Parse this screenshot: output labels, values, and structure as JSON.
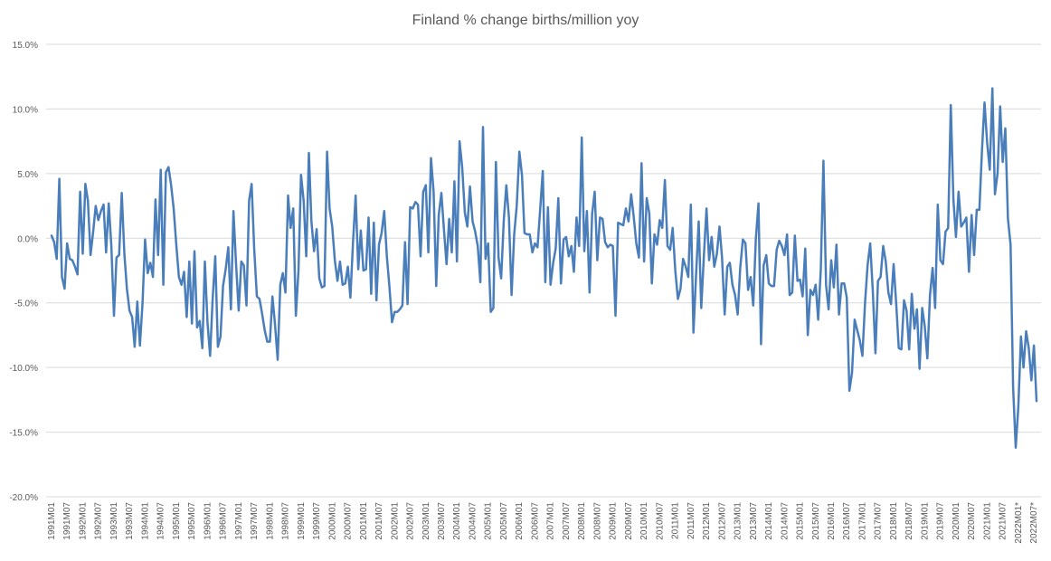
{
  "chart_data": {
    "type": "line",
    "title": "Finland % change births/million yoy",
    "xlabel": "",
    "ylabel": "",
    "ylim": [
      -20,
      15
    ],
    "yticks": [
      15,
      10,
      5,
      0,
      -5,
      -10,
      -15,
      -20
    ],
    "ytick_labels": [
      "15.0%",
      "10.0%",
      "5.0%",
      "0.0%",
      "-5.0%",
      "-10.0%",
      "-15.0%",
      "-20.0%"
    ],
    "xtick_labels": [
      "1991M01",
      "1991M07",
      "1992M01",
      "1992M07",
      "1993M01",
      "1993M07",
      "1994M01",
      "1994M07",
      "1995M01",
      "1995M07",
      "1996M01",
      "1996M07",
      "1997M01",
      "1997M07",
      "1998M01",
      "1998M07",
      "1999M01",
      "1999M07",
      "2000M01",
      "2000M07",
      "2001M01",
      "2001M07",
      "2002M01",
      "2002M07",
      "2003M01",
      "2003M07",
      "2004M01",
      "2004M07",
      "2005M01",
      "2005M07",
      "2006M01",
      "2006M07",
      "2007M01",
      "2007M07",
      "2008M01",
      "2008M07",
      "2009M01",
      "2009M07",
      "2010M01",
      "2010M07",
      "2011M01",
      "2011M07",
      "2012M01",
      "2012M07",
      "2013M01",
      "2013M07",
      "2014M01",
      "2014M07",
      "2015M01",
      "2015M07",
      "2016M01",
      "2016M07",
      "2017M01",
      "2017M07",
      "2018M01",
      "2018M07",
      "2019M01",
      "2019M07",
      "2020M01",
      "2020M07",
      "2021M01",
      "2021M07",
      "2022M01*",
      "2022M07*"
    ],
    "series": [
      {
        "name": "Finland % change births/million yoy",
        "color": "#4a7ebb",
        "values": [
          0.2,
          -0.3,
          -1.6,
          4.6,
          -3.0,
          -3.9,
          -0.4,
          -1.6,
          -1.7,
          -2.2,
          -2.8,
          3.6,
          -1.2,
          4.2,
          2.9,
          -1.3,
          0.5,
          2.5,
          1.4,
          2.1,
          2.6,
          -1.1,
          2.7,
          -0.6,
          -6.0,
          -1.5,
          -1.3,
          3.5,
          -1.2,
          -3.9,
          -5.6,
          -6.1,
          -8.4,
          -4.9,
          -8.3,
          -5.0,
          -0.1,
          -2.7,
          -1.9,
          -3.0,
          3.0,
          -1.3,
          5.3,
          -3.6,
          5.1,
          5.5,
          4.1,
          2.3,
          -0.5,
          -3.0,
          -3.6,
          -2.6,
          -6.1,
          -1.8,
          -6.6,
          -1.0,
          -6.9,
          -6.4,
          -8.5,
          -1.8,
          -6.5,
          -9.1,
          -4.7,
          -1.4,
          -8.4,
          -7.6,
          -3.7,
          -2.4,
          -0.7,
          -5.5,
          2.1,
          -2.0,
          -5.6,
          -1.8,
          -2.1,
          -5.2,
          2.9,
          4.2,
          -0.9,
          -4.5,
          -4.7,
          -5.8,
          -7.1,
          -8.0,
          -8.0,
          -4.5,
          -6.7,
          -9.4,
          -3.6,
          -2.7,
          -4.2,
          3.3,
          0.8,
          2.3,
          -6.0,
          -2.5,
          4.9,
          2.9,
          -1.4,
          6.6,
          1.3,
          -1.0,
          0.7,
          -3.1,
          -3.8,
          -3.7,
          6.7,
          2.3,
          0.9,
          -1.7,
          -3.3,
          -1.8,
          -3.6,
          -3.5,
          -2.2,
          -4.6,
          -0.3,
          3.3,
          -2.4,
          0.6,
          -2.5,
          -2.4,
          1.6,
          -4.3,
          1.2,
          -4.8,
          -0.5,
          0.4,
          2.1,
          -1.4,
          -3.7,
          -6.5,
          -5.7,
          -5.7,
          -5.5,
          -5.2,
          -0.3,
          -5.1,
          2.4,
          2.3,
          2.8,
          2.6,
          -1.4,
          3.6,
          4.1,
          -1.1,
          6.2,
          3.6,
          -3.7,
          1.8,
          3.5,
          0.6,
          -2.0,
          1.5,
          -1.1,
          4.4,
          -1.8,
          7.5,
          5.5,
          2.0,
          0.9,
          4.0,
          1.3,
          0.5,
          -0.6,
          -3.4,
          8.6,
          -1.6,
          -0.4,
          -5.7,
          -5.4,
          5.9,
          -1.5,
          -3.1,
          1.4,
          4.1,
          1.6,
          -4.4,
          0.3,
          2.5,
          6.7,
          4.9,
          0.4,
          0.3,
          0.3,
          -1.1,
          -0.4,
          -0.7,
          2.2,
          5.2,
          -3.4,
          2.4,
          -3.6,
          -1.9,
          -0.8,
          3.1,
          -3.5,
          -0.1,
          0.1,
          -1.4,
          -0.6,
          -2.6,
          1.6,
          -0.6,
          7.8,
          -1.0,
          2.1,
          -4.2,
          1.9,
          3.6,
          -1.7,
          1.6,
          1.5,
          -0.3,
          -0.7,
          -0.5,
          -0.6,
          -6.0,
          1.2,
          1.1,
          1.0,
          2.3,
          1.3,
          3.4,
          1.7,
          -0.4,
          -1.5,
          5.8,
          -1.8,
          3.1,
          1.9,
          -3.5,
          0.3,
          -0.5,
          1.4,
          0.8,
          4.5,
          -0.6,
          -0.9,
          0.8,
          -2.5,
          -4.7,
          -3.9,
          -1.6,
          -2.2,
          -3.0,
          2.6,
          -7.3,
          -2.8,
          1.3,
          -5.4,
          -1.4,
          2.3,
          -1.7,
          0.1,
          -2.2,
          -1.2,
          0.9,
          -1.5,
          -5.9,
          -2.2,
          -1.9,
          -3.6,
          -4.4,
          -5.9,
          -2.3,
          -0.1,
          -0.4,
          -4.0,
          -3.0,
          -5.2,
          0.0,
          2.7,
          -8.2,
          -2.1,
          -1.3,
          -3.5,
          -3.7,
          -3.7,
          -0.9,
          -0.2,
          -0.6,
          -1.3,
          0.3,
          -4.4,
          -4.2,
          0.2,
          -3.3,
          -3.2,
          -4.5,
          -0.8,
          -7.5,
          -4.0,
          -4.4,
          -3.6,
          -6.3,
          -2.4,
          6.0,
          -3.6,
          -5.5,
          -1.7,
          -3.8,
          -0.5,
          -5.9,
          -3.5,
          -3.5,
          -4.6,
          -11.8,
          -10.4,
          -6.3,
          -7.1,
          -7.9,
          -9.1,
          -5.0,
          -2.1,
          -0.4,
          -4.1,
          -8.9,
          -3.3,
          -3.0,
          -0.6,
          -1.8,
          -4.2,
          -5.1,
          -2.0,
          -5.0,
          -8.5,
          -8.6,
          -4.8,
          -5.6,
          -8.6,
          -4.3,
          -7.0,
          -5.5,
          -10.1,
          -5.4,
          -6.8,
          -9.3,
          -4.4,
          -2.3,
          -5.4,
          2.6,
          -1.7,
          -2.0,
          0.5,
          0.8,
          10.3,
          3.0,
          0.1,
          3.6,
          0.9,
          1.2,
          1.6,
          -2.6,
          1.8,
          -1.3,
          2.2,
          2.2,
          6.8,
          10.5,
          7.4,
          5.3,
          11.6,
          3.4,
          5.0,
          10.2,
          5.9,
          8.5,
          1.5,
          -0.5,
          -11.5,
          -16.2,
          -13.0,
          -7.6,
          -10.0,
          -7.2,
          -8.5,
          -11.0,
          -8.3,
          -12.6
        ]
      }
    ]
  }
}
